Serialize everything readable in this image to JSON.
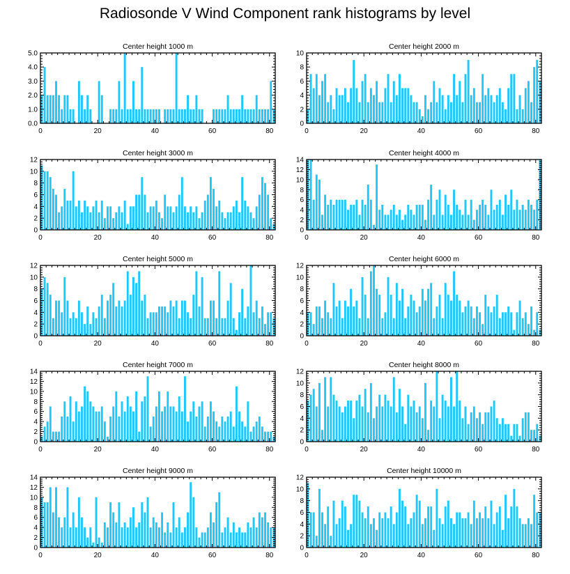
{
  "figure": {
    "title": "Radiosonde V Wind Component rank histograms by level",
    "bar_color": "#1ec8ff"
  },
  "chart_data": [
    {
      "type": "bar",
      "title": "Center height 1000 m",
      "xlim": [
        0,
        82
      ],
      "ylim": [
        0,
        5
      ],
      "yticks": [
        0,
        1,
        2,
        3,
        4,
        5
      ],
      "ytick_labels": [
        "0.0",
        "1.0",
        "2.0",
        "3.0",
        "4.0",
        "5.0"
      ],
      "xticks": [
        0,
        20,
        40,
        60,
        80
      ],
      "xtick_labels": [
        "0",
        "20",
        "40",
        "60",
        "80"
      ],
      "values": [
        2,
        4,
        2,
        2,
        2,
        3,
        2,
        1,
        2,
        2,
        1,
        1,
        0,
        3,
        2,
        1,
        2,
        1,
        0,
        0,
        3,
        2,
        0,
        0,
        1,
        1,
        1,
        3,
        1,
        5,
        1,
        1,
        3,
        1,
        1,
        4,
        1,
        1,
        1,
        1,
        1,
        1,
        0,
        1,
        1,
        1,
        1,
        5,
        1,
        1,
        1,
        2,
        1,
        1,
        2,
        1,
        1,
        0,
        0,
        0,
        1,
        1,
        1,
        1,
        1,
        2,
        1,
        1,
        1,
        1,
        2,
        1,
        1,
        1,
        1,
        2,
        1,
        1,
        1,
        1,
        3,
        1
      ]
    },
    {
      "type": "bar",
      "title": "Center height 2000 m",
      "xlim": [
        0,
        82
      ],
      "ylim": [
        0,
        10
      ],
      "yticks": [
        0,
        2,
        4,
        6,
        8,
        10
      ],
      "ytick_labels": [
        "0",
        "2",
        "4",
        "6",
        "8",
        "10"
      ],
      "xticks": [
        0,
        20,
        40,
        60,
        80
      ],
      "xtick_labels": [
        "0",
        "20",
        "40",
        "60",
        "80"
      ],
      "values": [
        2,
        7,
        5,
        7,
        4,
        6,
        7,
        3,
        4,
        2,
        5,
        4,
        4,
        5,
        3,
        5,
        9,
        5,
        3,
        6,
        7,
        3,
        5,
        4,
        6,
        3,
        3,
        5,
        7,
        3,
        6,
        4,
        7,
        5,
        5,
        5,
        4,
        3,
        3,
        2,
        1,
        4,
        2,
        3,
        6,
        3,
        5,
        4,
        2,
        4,
        3,
        7,
        4,
        6,
        3,
        7,
        9,
        4,
        5,
        3,
        3,
        7,
        4,
        5,
        4,
        3,
        4,
        5,
        3,
        2,
        5,
        7,
        7,
        2,
        4,
        2,
        5,
        6,
        3,
        8,
        9,
        6
      ]
    },
    {
      "type": "bar",
      "title": "Center height 3000 m",
      "xlim": [
        0,
        82
      ],
      "ylim": [
        0,
        12
      ],
      "yticks": [
        0,
        2,
        4,
        6,
        8,
        10,
        12
      ],
      "ytick_labels": [
        "0",
        "2",
        "4",
        "6",
        "8",
        "10",
        "12"
      ],
      "xticks": [
        0,
        20,
        40,
        60,
        80
      ],
      "xtick_labels": [
        "0",
        "20",
        "40",
        "60",
        "80"
      ],
      "values": [
        11,
        10,
        10,
        9,
        7,
        6,
        3,
        4,
        7,
        5,
        5,
        10,
        4,
        5,
        3,
        5,
        4,
        3,
        4,
        5,
        3,
        5,
        2,
        4,
        4,
        2,
        3,
        4,
        3,
        5,
        1,
        4,
        4,
        6,
        6,
        9,
        6,
        3,
        4,
        4,
        5,
        3,
        2,
        6,
        4,
        4,
        3,
        4,
        6,
        9,
        4,
        3,
        4,
        3,
        4,
        2,
        3,
        5,
        6,
        9,
        7,
        4,
        5,
        3,
        2,
        3,
        3,
        4,
        5,
        3,
        9,
        5,
        4,
        3,
        2,
        4,
        6,
        9,
        8,
        6,
        2,
        1
      ]
    },
    {
      "type": "bar",
      "title": "Center height 4000 m",
      "xlim": [
        0,
        82
      ],
      "ylim": [
        0,
        14
      ],
      "yticks": [
        0,
        2,
        4,
        6,
        8,
        10,
        12,
        14
      ],
      "ytick_labels": [
        "0",
        "2",
        "4",
        "6",
        "8",
        "10",
        "12",
        "14"
      ],
      "xticks": [
        0,
        20,
        40,
        60,
        80
      ],
      "xtick_labels": [
        "0",
        "20",
        "40",
        "60",
        "80"
      ],
      "values": [
        14,
        14,
        6,
        11,
        10,
        3,
        7,
        5,
        6,
        5,
        6,
        6,
        6,
        6,
        4,
        5,
        5,
        6,
        3,
        6,
        5,
        9,
        6,
        1,
        13,
        4,
        5,
        3,
        3,
        4,
        5,
        3,
        4,
        2,
        3,
        5,
        4,
        3,
        5,
        5,
        5,
        2,
        6,
        9,
        3,
        6,
        8,
        3,
        7,
        5,
        3,
        8,
        5,
        4,
        3,
        6,
        3,
        6,
        2,
        4,
        5,
        6,
        5,
        3,
        8,
        4,
        5,
        6,
        3,
        7,
        5,
        8,
        4,
        6,
        4,
        5,
        4,
        6,
        5,
        4,
        6,
        14
      ]
    },
    {
      "type": "bar",
      "title": "Center height 5000 m",
      "xlim": [
        0,
        82
      ],
      "ylim": [
        0,
        12
      ],
      "yticks": [
        0,
        2,
        4,
        6,
        8,
        10,
        12
      ],
      "ytick_labels": [
        "0",
        "2",
        "4",
        "6",
        "8",
        "10",
        "12"
      ],
      "xticks": [
        0,
        20,
        40,
        60,
        80
      ],
      "xtick_labels": [
        "0",
        "20",
        "40",
        "60",
        "80"
      ],
      "values": [
        8,
        10,
        9,
        7,
        3,
        6,
        6,
        4,
        10,
        6,
        3,
        4,
        3,
        6,
        4,
        2,
        5,
        2,
        4,
        3,
        5,
        7,
        3,
        6,
        7,
        9,
        5,
        6,
        5,
        6,
        11,
        7,
        10,
        9,
        11,
        6,
        7,
        3,
        4,
        4,
        4,
        5,
        5,
        5,
        4,
        6,
        5,
        6,
        3,
        6,
        6,
        4,
        3,
        7,
        11,
        5,
        10,
        3,
        3,
        6,
        6,
        3,
        11,
        3,
        3,
        6,
        9,
        3,
        1,
        4,
        8,
        3,
        5,
        12,
        4,
        6,
        3,
        5,
        2,
        4,
        4,
        3
      ]
    },
    {
      "type": "bar",
      "title": "Center height 6000 m",
      "xlim": [
        0,
        82
      ],
      "ylim": [
        0,
        12
      ],
      "yticks": [
        0,
        2,
        4,
        6,
        8,
        10,
        12
      ],
      "ytick_labels": [
        "0",
        "2",
        "4",
        "6",
        "8",
        "10",
        "12"
      ],
      "xticks": [
        0,
        20,
        40,
        60,
        80
      ],
      "xtick_labels": [
        "0",
        "20",
        "40",
        "60",
        "80"
      ],
      "values": [
        4,
        4,
        2,
        5,
        5,
        3,
        6,
        4,
        3,
        9,
        5,
        6,
        3,
        6,
        5,
        8,
        5,
        6,
        3,
        10,
        7,
        3,
        11,
        12,
        8,
        7,
        3,
        4,
        10,
        7,
        3,
        9,
        6,
        8,
        3,
        5,
        7,
        6,
        4,
        5,
        8,
        6,
        8,
        9,
        3,
        5,
        7,
        3,
        9,
        7,
        6,
        11,
        7,
        6,
        4,
        5,
        6,
        5,
        3,
        5,
        4,
        2,
        7,
        5,
        4,
        5,
        7,
        3,
        4,
        4,
        5,
        4,
        1,
        4,
        6,
        3,
        4,
        2,
        5,
        1,
        4,
        1
      ]
    },
    {
      "type": "bar",
      "title": "Center height 7000 m",
      "xlim": [
        0,
        82
      ],
      "ylim": [
        0,
        14
      ],
      "yticks": [
        0,
        2,
        4,
        6,
        8,
        10,
        12,
        14
      ],
      "ytick_labels": [
        "0",
        "2",
        "4",
        "6",
        "8",
        "10",
        "12",
        "14"
      ],
      "xticks": [
        0,
        20,
        40,
        60,
        80
      ],
      "xtick_labels": [
        "0",
        "20",
        "40",
        "60",
        "80"
      ],
      "values": [
        1,
        3,
        4,
        7,
        2,
        2,
        2,
        5,
        8,
        5,
        9,
        4,
        8,
        6,
        7,
        11,
        10,
        8,
        7,
        6,
        6,
        7,
        4,
        1,
        5,
        7,
        10,
        5,
        8,
        6,
        9,
        7,
        6,
        10,
        2,
        8,
        9,
        13,
        3,
        5,
        7,
        10,
        6,
        7,
        10,
        7,
        7,
        6,
        9,
        6,
        13,
        4,
        6,
        8,
        5,
        7,
        8,
        3,
        5,
        8,
        6,
        4,
        3,
        5,
        4,
        5,
        6,
        3,
        11,
        6,
        4,
        3,
        8,
        2,
        3,
        4,
        5,
        3,
        2,
        2,
        2,
        1
      ]
    },
    {
      "type": "bar",
      "title": "Center height 8000 m",
      "xlim": [
        0,
        82
      ],
      "ylim": [
        0,
        12
      ],
      "yticks": [
        0,
        2,
        4,
        6,
        8,
        10,
        12
      ],
      "ytick_labels": [
        "0",
        "2",
        "4",
        "6",
        "8",
        "10",
        "12"
      ],
      "xticks": [
        0,
        20,
        40,
        60,
        80
      ],
      "xtick_labels": [
        "0",
        "20",
        "40",
        "60",
        "80"
      ],
      "values": [
        7,
        8,
        9,
        6,
        10,
        2,
        11,
        6,
        11,
        8,
        7,
        6,
        5,
        6,
        7,
        7,
        4,
        7,
        8,
        6,
        9,
        5,
        10,
        4,
        6,
        8,
        6,
        8,
        7,
        6,
        11,
        5,
        9,
        6,
        3,
        8,
        6,
        7,
        5,
        6,
        4,
        10,
        2,
        7,
        6,
        12,
        4,
        8,
        7,
        6,
        11,
        6,
        12,
        7,
        4,
        6,
        3,
        5,
        6,
        4,
        5,
        3,
        5,
        5,
        6,
        7,
        4,
        3,
        4,
        3,
        3,
        1,
        3,
        3,
        1,
        4,
        5,
        5,
        2,
        2,
        3,
        1
      ]
    },
    {
      "type": "bar",
      "title": "Center height 9000 m",
      "xlim": [
        0,
        82
      ],
      "ylim": [
        0,
        14
      ],
      "yticks": [
        0,
        2,
        4,
        6,
        8,
        10,
        12,
        14
      ],
      "ytick_labels": [
        "0",
        "2",
        "4",
        "6",
        "8",
        "10",
        "12",
        "14"
      ],
      "xticks": [
        0,
        20,
        40,
        60,
        80
      ],
      "xtick_labels": [
        "0",
        "20",
        "40",
        "60",
        "80"
      ],
      "values": [
        10,
        9,
        9,
        12,
        7,
        12,
        6,
        4,
        6,
        12,
        4,
        7,
        4,
        10,
        6,
        4,
        2,
        4,
        1,
        10,
        2,
        1,
        5,
        4,
        9,
        7,
        5,
        9,
        4,
        5,
        4,
        6,
        8,
        4,
        5,
        9,
        7,
        10,
        4,
        6,
        5,
        4,
        7,
        3,
        5,
        3,
        9,
        4,
        6,
        3,
        4,
        7,
        13,
        10,
        4,
        2,
        3,
        3,
        4,
        7,
        5,
        9,
        11,
        3,
        4,
        6,
        3,
        5,
        3,
        4,
        3,
        3,
        5,
        4,
        6,
        4,
        7,
        6,
        7,
        5,
        4,
        4
      ]
    },
    {
      "type": "bar",
      "title": "Center height 10000 m",
      "xlim": [
        0,
        82
      ],
      "ylim": [
        0,
        12
      ],
      "yticks": [
        0,
        2,
        4,
        6,
        8,
        10,
        12
      ],
      "ytick_labels": [
        "0",
        "2",
        "4",
        "6",
        "8",
        "10",
        "12"
      ],
      "xticks": [
        0,
        20,
        40,
        60,
        80
      ],
      "xtick_labels": [
        "0",
        "20",
        "40",
        "60",
        "80"
      ],
      "values": [
        11,
        6,
        6,
        2,
        10,
        6,
        4,
        7,
        2,
        8,
        4,
        5,
        8,
        7,
        3,
        4,
        9,
        9,
        8,
        6,
        5,
        7,
        4,
        5,
        3,
        6,
        5,
        6,
        5,
        7,
        4,
        6,
        10,
        8,
        7,
        4,
        5,
        6,
        9,
        8,
        4,
        5,
        7,
        7,
        3,
        10,
        5,
        4,
        7,
        8,
        5,
        4,
        6,
        6,
        5,
        5,
        6,
        4,
        8,
        5,
        6,
        5,
        7,
        5,
        8,
        4,
        6,
        7,
        3,
        9,
        5,
        7,
        10,
        7,
        5,
        4,
        4,
        5,
        4,
        9,
        6,
        6
      ]
    }
  ]
}
